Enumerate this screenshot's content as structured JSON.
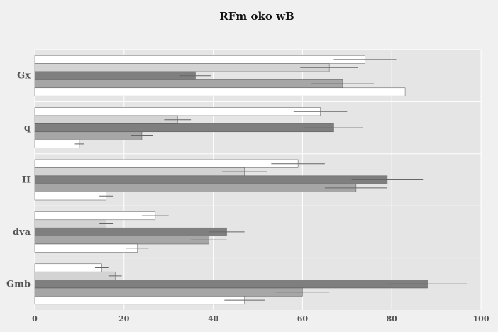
{
  "chart_data": {
    "type": "bar",
    "orientation": "horizontal",
    "title": "RFm oko wB",
    "xlabel": "",
    "ylabel": "",
    "categories": [
      "Gx",
      "q",
      "H",
      "dva",
      "Gmb"
    ],
    "xlim": [
      0,
      100
    ],
    "xticks": [
      "0",
      "20",
      "40",
      "60",
      "80",
      "100"
    ],
    "grid": true,
    "legend": "none",
    "series": [
      {
        "color": "#ffffff",
        "values": [
          74,
          64,
          59,
          27,
          15
        ],
        "errors": [
          7,
          6,
          6,
          3,
          1.5
        ]
      },
      {
        "color": "#d3d3d3",
        "values": [
          66,
          32,
          47,
          16,
          18
        ],
        "errors": [
          6.5,
          3,
          5,
          1.5,
          1.5
        ]
      },
      {
        "color": "#7f7f7f",
        "values": [
          36,
          67,
          79,
          43,
          88
        ],
        "errors": [
          3.5,
          6.5,
          8,
          4,
          9
        ]
      },
      {
        "color": "#a6a6a6",
        "values": [
          69,
          24,
          72,
          39,
          60
        ],
        "errors": [
          7,
          2.5,
          7,
          4,
          6
        ]
      },
      {
        "color": "#ffffff",
        "values": [
          83,
          10,
          16,
          23,
          47
        ],
        "errors": [
          8.5,
          1,
          1.5,
          2.5,
          4.5
        ]
      }
    ]
  }
}
